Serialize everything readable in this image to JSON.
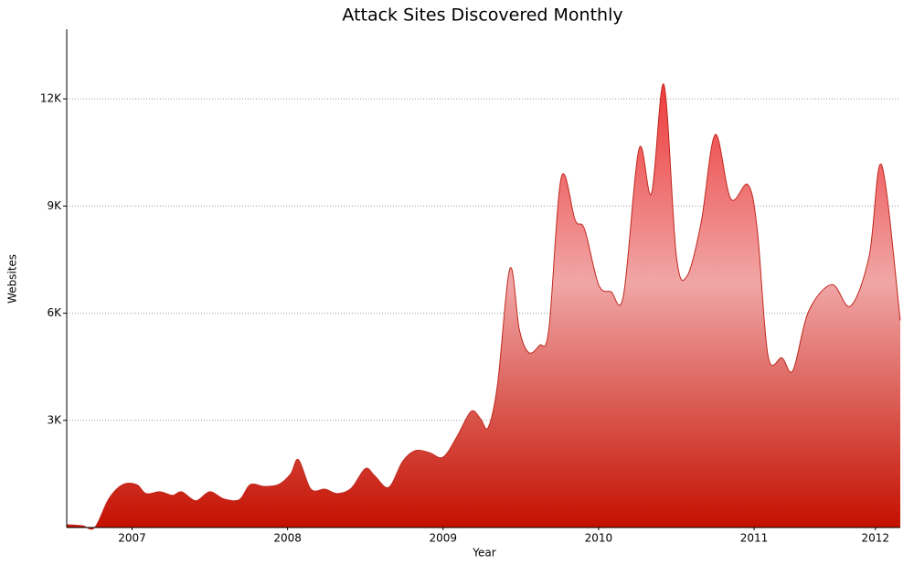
{
  "chart_data": {
    "type": "area",
    "title": "Attack Sites Discovered Monthly",
    "x_label": "Year",
    "y_label": "Websites",
    "x": [
      2006.58,
      2006.68,
      2006.76,
      2006.85,
      2006.94,
      2007.03,
      2007.09,
      2007.18,
      2007.26,
      2007.32,
      2007.41,
      2007.5,
      2007.59,
      2007.69,
      2007.76,
      2007.85,
      2007.94,
      2008.02,
      2008.07,
      2008.15,
      2008.24,
      2008.32,
      2008.41,
      2008.5,
      2008.56,
      2008.65,
      2008.74,
      2008.82,
      2008.91,
      2009.0,
      2009.09,
      2009.18,
      2009.24,
      2009.29,
      2009.35,
      2009.43,
      2009.49,
      2009.55,
      2009.62,
      2009.68,
      2009.76,
      2009.85,
      2009.91,
      2010.0,
      2010.08,
      2010.16,
      2010.26,
      2010.34,
      2010.42,
      2010.5,
      2010.57,
      2010.66,
      2010.75,
      2010.85,
      2010.96,
      2011.02,
      2011.09,
      2011.18,
      2011.25,
      2011.35,
      2011.5,
      2011.62,
      2011.74,
      2011.82,
      2011.94
    ],
    "series": [
      {
        "name": "Websites",
        "color": "#c0281e",
        "values": [
          80,
          50,
          0,
          800,
          1200,
          1200,
          950,
          1000,
          900,
          1000,
          750,
          1000,
          800,
          780,
          1200,
          1150,
          1200,
          1500,
          1900,
          1075,
          1075,
          950,
          1100,
          1650,
          1450,
          1125,
          1850,
          2150,
          2100,
          1970,
          2550,
          3250,
          3050,
          2800,
          4000,
          7250,
          5550,
          4900,
          5100,
          5550,
          9800,
          8600,
          8350,
          6800,
          6600,
          6500,
          10600,
          9350,
          12400,
          7600,
          7050,
          8550,
          11000,
          9200,
          9600,
          8350,
          4800,
          4750,
          4400,
          6050,
          6800,
          6200,
          7600,
          10150,
          5800
        ]
      }
    ],
    "xlim": [
      2006.58,
      2011.94
    ],
    "xticks": [
      2007,
      2008,
      2009,
      2010,
      2011,
      {
        "value": 2011.78,
        "label": "2012"
      }
    ],
    "ylim": [
      0,
      14000
    ],
    "yticks": [
      {
        "value": 3000,
        "label": "3K"
      },
      {
        "value": 6000,
        "label": "6K"
      },
      {
        "value": 9000,
        "label": "9K"
      },
      {
        "value": 12000,
        "label": "12K"
      }
    ],
    "grid": true
  }
}
